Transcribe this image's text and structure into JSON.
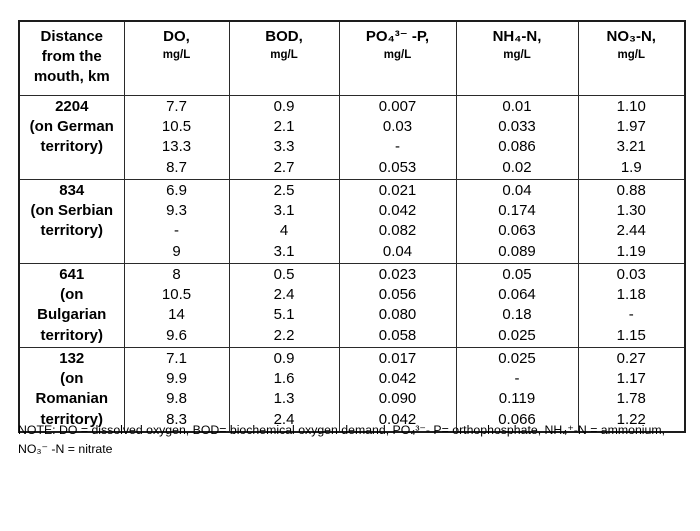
{
  "page": {
    "background": "#ffffff",
    "border_color": "#2a2a2a",
    "text_color": "#000000"
  },
  "table": {
    "headers": {
      "distance": [
        "Distance",
        "from the",
        "mouth, km"
      ],
      "do": {
        "name": "DO,",
        "unit": "mg/L"
      },
      "bod": {
        "name": "BOD,",
        "unit": "mg/L"
      },
      "po4": {
        "name": "PO₄³⁻ -P,",
        "unit": "mg/L"
      },
      "nh4": {
        "name": "NH₄-N,",
        "unit": "mg/L"
      },
      "no3": {
        "name": "NO₃-N,",
        "unit": "mg/L"
      }
    },
    "groups": [
      {
        "label": [
          "2204",
          "(on German",
          "territory)",
          ""
        ],
        "do": [
          "7.7",
          "10.5",
          "13.3",
          "8.7"
        ],
        "bod": [
          "0.9",
          "2.1",
          "3.3",
          "2.7"
        ],
        "po4": [
          "0.007",
          "0.03",
          "-",
          "0.053"
        ],
        "nh4": [
          "0.01",
          "0.033",
          "0.086",
          "0.02"
        ],
        "no3": [
          "1.10",
          "1.97",
          "3.21",
          "1.9"
        ]
      },
      {
        "label": [
          "834",
          "(on Serbian",
          "territory)",
          ""
        ],
        "do": [
          "6.9",
          "9.3",
          "-",
          "9"
        ],
        "bod": [
          "2.5",
          "3.1",
          "4",
          "3.1"
        ],
        "po4": [
          "0.021",
          "0.042",
          "0.082",
          "0.04"
        ],
        "nh4": [
          "0.04",
          "0.174",
          "0.063",
          "0.089"
        ],
        "no3": [
          "0.88",
          "1.30",
          "2.44",
          "1.19"
        ]
      },
      {
        "label": [
          "641",
          "(on",
          "Bulgarian",
          "territory)"
        ],
        "do": [
          "8",
          "10.5",
          "14",
          "9.6"
        ],
        "bod": [
          "0.5",
          "2.4",
          "5.1",
          "2.2"
        ],
        "po4": [
          "0.023",
          "0.056",
          "0.080",
          "0.058"
        ],
        "nh4": [
          "0.05",
          "0.064",
          "0.18",
          "0.025"
        ],
        "no3": [
          "0.03",
          "1.18",
          "-",
          "1.15"
        ]
      },
      {
        "label": [
          "132",
          "(on",
          "Romanian",
          "territory)"
        ],
        "do": [
          "7.1",
          "9.9",
          "9.8",
          "8.3"
        ],
        "bod": [
          "0.9",
          "1.6",
          "1.3",
          "2.4"
        ],
        "po4": [
          "0.017",
          "0.042",
          "0.090",
          "0.042"
        ],
        "nh4": [
          "0.025",
          "-",
          "0.119",
          "0.066"
        ],
        "no3": [
          "0.27",
          "1.17",
          "1.78",
          "1.22"
        ]
      }
    ]
  },
  "note": {
    "line1": "NOTE: DO = dissolved oxygen, BOD= biochemical oxygen demand, PO₄³⁻- P= orthophosphate, NH₄⁺-N = ammonium,",
    "line2": "NO₃⁻ -N = nitrate"
  }
}
